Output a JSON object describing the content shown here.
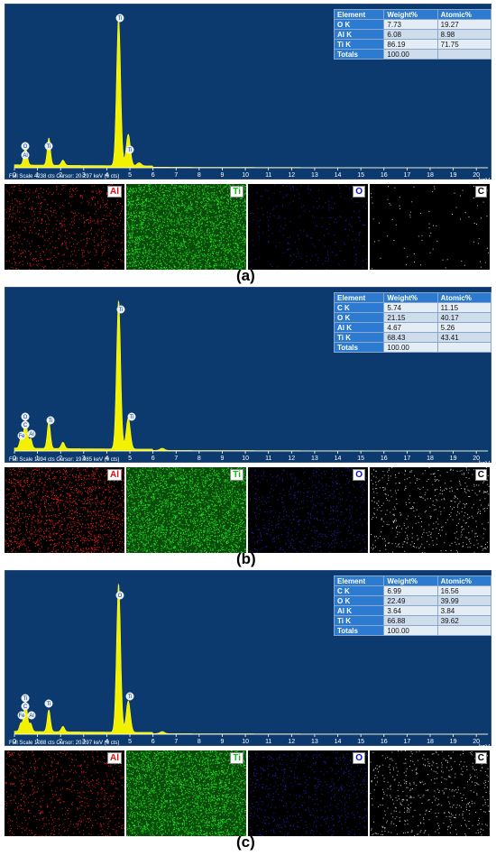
{
  "x_axis_unit": "keV",
  "x_ticks": [
    "0",
    "1",
    "2",
    "3",
    "4",
    "5",
    "6",
    "7",
    "8",
    "9",
    "10",
    "11",
    "12",
    "13",
    "14",
    "15",
    "16",
    "17",
    "18",
    "19",
    "20"
  ],
  "table_headers": [
    "Element",
    "Weight%",
    "Atomic%"
  ],
  "colors": {
    "spectrum_bg": "#0c3a6e",
    "spectrum_fill": "#f2f200",
    "table_header": "#2c7bd0"
  },
  "panels": [
    {
      "caption": "(a)",
      "status_text": "Full Scale 4238 cts  Cursor: 20.297 keV (0 cts)",
      "rows": [
        {
          "element": "O K",
          "weight": "7.73",
          "atomic": "19.27"
        },
        {
          "element": "Al K",
          "weight": "6.08",
          "atomic": "8.98"
        },
        {
          "element": "Ti K",
          "weight": "86.19",
          "atomic": "71.75"
        },
        {
          "element": "Totals",
          "weight": "100.00",
          "atomic": ""
        }
      ],
      "peak_labels": [
        "Ti",
        "O",
        "Al",
        "Ti",
        "Ti"
      ],
      "maps": [
        {
          "label": "Al",
          "color": "#ff2020",
          "label_color": "#e01010"
        },
        {
          "label": "Ti",
          "color": "#22ee22",
          "label_color": "#10c010"
        },
        {
          "label": "O",
          "color": "#3030ff",
          "label_color": "#1010e0"
        },
        {
          "label": "C",
          "color": "#e0e0e0",
          "label_color": "#000000"
        }
      ]
    },
    {
      "caption": "(b)",
      "status_text": "Full Scale 1394 cts  Cursor: 19.985 keV (0 cts)",
      "rows": [
        {
          "element": "C K",
          "weight": "5.74",
          "atomic": "11.15"
        },
        {
          "element": "O K",
          "weight": "21.15",
          "atomic": "40.17"
        },
        {
          "element": "Al K",
          "weight": "4.67",
          "atomic": "5.26"
        },
        {
          "element": "Ti K",
          "weight": "68.43",
          "atomic": "43.41"
        },
        {
          "element": "Totals",
          "weight": "100.00",
          "atomic": ""
        }
      ],
      "peak_labels": [
        "Ti",
        "O",
        "C",
        "Fe",
        "Al",
        "Ti",
        "Ti"
      ],
      "maps": [
        {
          "label": "Al",
          "color": "#ff2020",
          "label_color": "#e01010"
        },
        {
          "label": "Ti",
          "color": "#22ee22",
          "label_color": "#10c010"
        },
        {
          "label": "O",
          "color": "#3030ff",
          "label_color": "#1010e0"
        },
        {
          "label": "C",
          "color": "#e0e0e0",
          "label_color": "#000000"
        }
      ]
    },
    {
      "caption": "(c)",
      "status_text": "Full Scale 1088 cts  Cursor: 20.297 keV (0 cts)",
      "rows": [
        {
          "element": "C K",
          "weight": "6.99",
          "atomic": "16.56"
        },
        {
          "element": "O K",
          "weight": "22.49",
          "atomic": "39.99"
        },
        {
          "element": "Al K",
          "weight": "3.64",
          "atomic": "3.84"
        },
        {
          "element": "Ti K",
          "weight": "66.88",
          "atomic": "39.62"
        },
        {
          "element": "Totals",
          "weight": "100.00",
          "atomic": ""
        }
      ],
      "peak_labels": [
        "O",
        "Ti",
        "C",
        "Fe",
        "Al",
        "Ti",
        "Ti"
      ],
      "maps": [
        {
          "label": "Al",
          "color": "#ff2020",
          "label_color": "#e01010"
        },
        {
          "label": "Ti",
          "color": "#22ee22",
          "label_color": "#10c010"
        },
        {
          "label": "O",
          "color": "#3030ff",
          "label_color": "#1010e0"
        },
        {
          "label": "C",
          "color": "#e0e0e0",
          "label_color": "#000000"
        }
      ]
    }
  ],
  "chart_data": [
    {
      "type": "area",
      "title": "(a)",
      "xlabel": "keV",
      "xlim": [
        0,
        20.5
      ],
      "ylim": [
        0,
        4238
      ],
      "peaks": [
        {
          "x": 0.45,
          "y": 330
        },
        {
          "x": 0.52,
          "y": 260
        },
        {
          "x": 1.49,
          "y": 780
        },
        {
          "x": 2.1,
          "y": 150
        },
        {
          "x": 4.51,
          "y": 4238
        },
        {
          "x": 4.93,
          "y": 900
        },
        {
          "x": 5.4,
          "y": 90
        }
      ]
    },
    {
      "type": "area",
      "title": "(b)",
      "xlabel": "keV",
      "xlim": [
        0,
        20.5
      ],
      "ylim": [
        0,
        1394
      ],
      "peaks": [
        {
          "x": 0.28,
          "y": 90
        },
        {
          "x": 0.45,
          "y": 170
        },
        {
          "x": 0.52,
          "y": 140
        },
        {
          "x": 0.7,
          "y": 90
        },
        {
          "x": 1.49,
          "y": 250
        },
        {
          "x": 2.1,
          "y": 60
        },
        {
          "x": 4.51,
          "y": 1394
        },
        {
          "x": 4.93,
          "y": 290
        },
        {
          "x": 6.4,
          "y": 20
        }
      ]
    },
    {
      "type": "area",
      "title": "(c)",
      "xlabel": "keV",
      "xlim": [
        0,
        20.5
      ],
      "ylim": [
        0,
        1088
      ],
      "peaks": [
        {
          "x": 0.28,
          "y": 60
        },
        {
          "x": 0.45,
          "y": 140
        },
        {
          "x": 0.52,
          "y": 120
        },
        {
          "x": 0.7,
          "y": 60
        },
        {
          "x": 1.49,
          "y": 160
        },
        {
          "x": 2.1,
          "y": 40
        },
        {
          "x": 4.51,
          "y": 1088
        },
        {
          "x": 4.93,
          "y": 230
        },
        {
          "x": 6.4,
          "y": 15
        }
      ]
    }
  ]
}
